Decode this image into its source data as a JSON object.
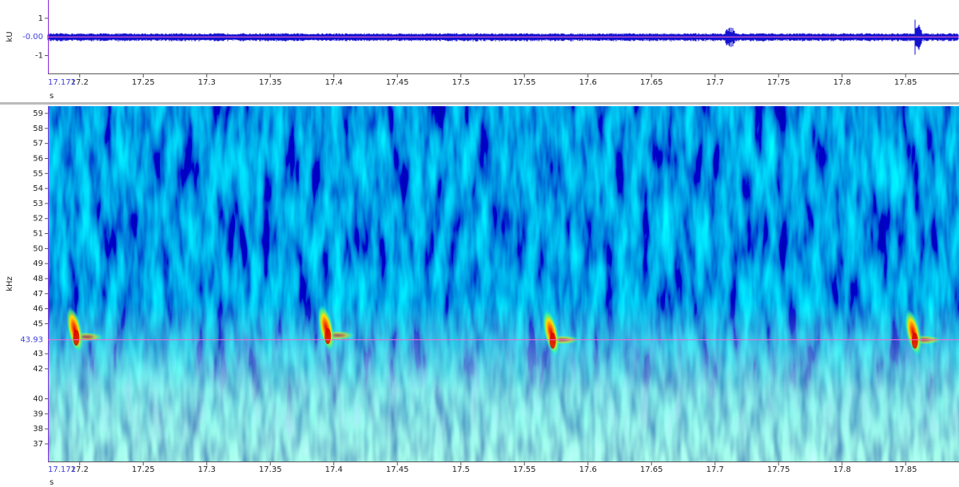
{
  "chart_data": [
    {
      "type": "waveform",
      "y_label": "kU",
      "x_label": "s",
      "x_cursor_label": "17.172",
      "xlim": [
        17.175,
        17.892
      ],
      "xticks": [
        17.2,
        17.25,
        17.3,
        17.35,
        17.4,
        17.45,
        17.5,
        17.55,
        17.6,
        17.65,
        17.7,
        17.75,
        17.8,
        17.85
      ],
      "ylim": [
        -1.96,
        1.98
      ],
      "yticks": [
        1,
        {
          "value": 0,
          "label": "-0.00"
        },
        -1
      ],
      "color": "#1212d0",
      "cursor_color": "#ff66cc"
    },
    {
      "type": "spectrogram",
      "y_label": "kHz",
      "x_label": "s",
      "x_cursor_label": "17.172",
      "xlim": [
        17.175,
        17.892
      ],
      "xticks": [
        17.2,
        17.25,
        17.3,
        17.35,
        17.4,
        17.45,
        17.5,
        17.55,
        17.6,
        17.65,
        17.7,
        17.75,
        17.8,
        17.85
      ],
      "ylim": [
        35.83,
        59.48
      ],
      "yticks": [
        59,
        58,
        57,
        56,
        55,
        54,
        53,
        52,
        51,
        50,
        49,
        48,
        47,
        46,
        45,
        {
          "value": 43.93,
          "label": "43.93"
        },
        43,
        42,
        40,
        39,
        38,
        37
      ],
      "events": [
        {
          "time": 17.196,
          "freq": 44.6
        },
        {
          "time": 17.394,
          "freq": 44.7
        },
        {
          "time": 17.571,
          "freq": 44.4
        },
        {
          "time": 17.856,
          "freq": 44.4
        }
      ],
      "cursor_color": "#ff66cc"
    }
  ]
}
